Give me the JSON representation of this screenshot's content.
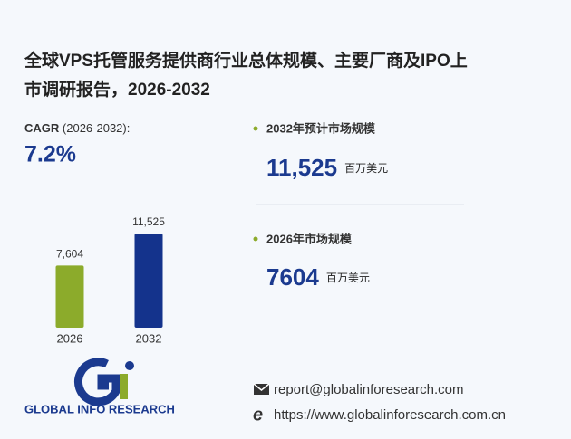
{
  "title_line1": "全球VPS托管服务提供商行业总体规模、主要厂商及IPO上",
  "title_line2": "市调研报告，2026-2032",
  "cagr": {
    "label": "CAGR",
    "period": "(2026-2032):",
    "value": "7.2%"
  },
  "stats": [
    {
      "label": "2032年预计市场规模",
      "value": "11,525",
      "unit": "百万美元"
    },
    {
      "label": "2026年市场规模",
      "value": "7604",
      "unit": "百万美元"
    }
  ],
  "chart_data": {
    "type": "bar",
    "categories": [
      "2026",
      "2032"
    ],
    "values": [
      7604,
      11525
    ],
    "value_labels": [
      "7,604",
      "11,525"
    ],
    "colors": [
      "#8cab2b",
      "#14338c"
    ]
  },
  "logo": {
    "text": "GLOBAL INFO RESEARCH"
  },
  "contact": {
    "email": "report@globalinforesearch.com",
    "website": "https://www.globalinforesearch.com.cn"
  }
}
